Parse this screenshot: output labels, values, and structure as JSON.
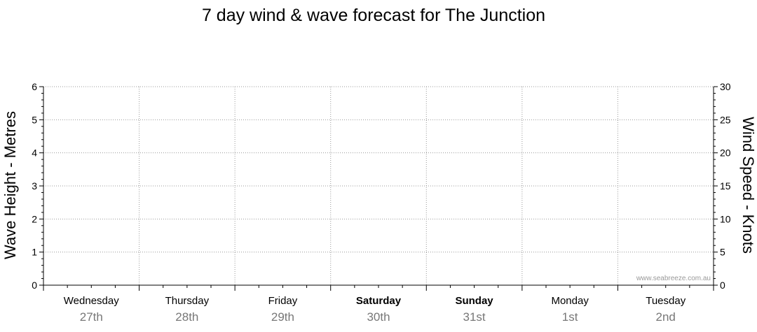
{
  "chart_data": {
    "type": "line",
    "title": "7 day wind & wave forecast for The Junction",
    "ylabel_left": "Wave Height - Metres",
    "ylabel_right": "Wind Speed - Knots",
    "ylim_left": [
      0,
      6
    ],
    "ylim_right": [
      0,
      30
    ],
    "left_ticks": [
      "0",
      "1",
      "2",
      "3",
      "4",
      "5",
      "6"
    ],
    "right_ticks": [
      "0",
      "5",
      "10",
      "15",
      "20",
      "25",
      "30"
    ],
    "days": [
      {
        "day": "Wednesday",
        "date": "27th",
        "bold": false
      },
      {
        "day": "Thursday",
        "date": "28th",
        "bold": false
      },
      {
        "day": "Friday",
        "date": "29th",
        "bold": false
      },
      {
        "day": "Saturday",
        "date": "30th",
        "bold": true
      },
      {
        "day": "Sunday",
        "date": "31st",
        "bold": true
      },
      {
        "day": "Monday",
        "date": "1st",
        "bold": false
      },
      {
        "day": "Tuesday",
        "date": "2nd",
        "bold": false
      }
    ],
    "series": [],
    "grid": true,
    "watermark": "www.seabreeze.com.au"
  }
}
